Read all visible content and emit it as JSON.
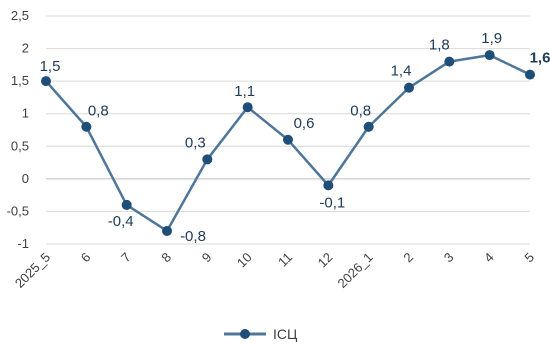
{
  "chart_data": {
    "type": "line",
    "categories": [
      "2025_5",
      "6",
      "7",
      "8",
      "9",
      "10",
      "11",
      "12",
      "2026_1",
      "2",
      "3",
      "4",
      "5"
    ],
    "series": [
      {
        "name": "ІСЦ",
        "values": [
          1.5,
          0.8,
          -0.4,
          -0.8,
          0.3,
          1.1,
          0.6,
          -0.1,
          0.8,
          1.4,
          1.8,
          1.9,
          1.6
        ],
        "data_labels": [
          "1,5",
          "0,8",
          "-0,4",
          "-0,8",
          "0,3",
          "1,1",
          "0,6",
          "-0,1",
          "0,8",
          "1,4",
          "1,8",
          "1,9",
          "1,6"
        ],
        "color": "#4f7698",
        "marker_color": "#1f4e79"
      }
    ],
    "y_ticks": [
      2.5,
      2,
      1.5,
      1,
      0.5,
      0,
      -0.5,
      -1
    ],
    "y_tick_labels": [
      "2,5",
      "2",
      "1,5",
      "1",
      "0,5",
      "0",
      "-0,5",
      "-1"
    ],
    "ylim": [
      -1,
      2.5
    ],
    "grid": true,
    "gridline_color": "#d9d9d9",
    "legend_position": "bottom",
    "title": "",
    "xlabel": "",
    "ylabel": ""
  }
}
